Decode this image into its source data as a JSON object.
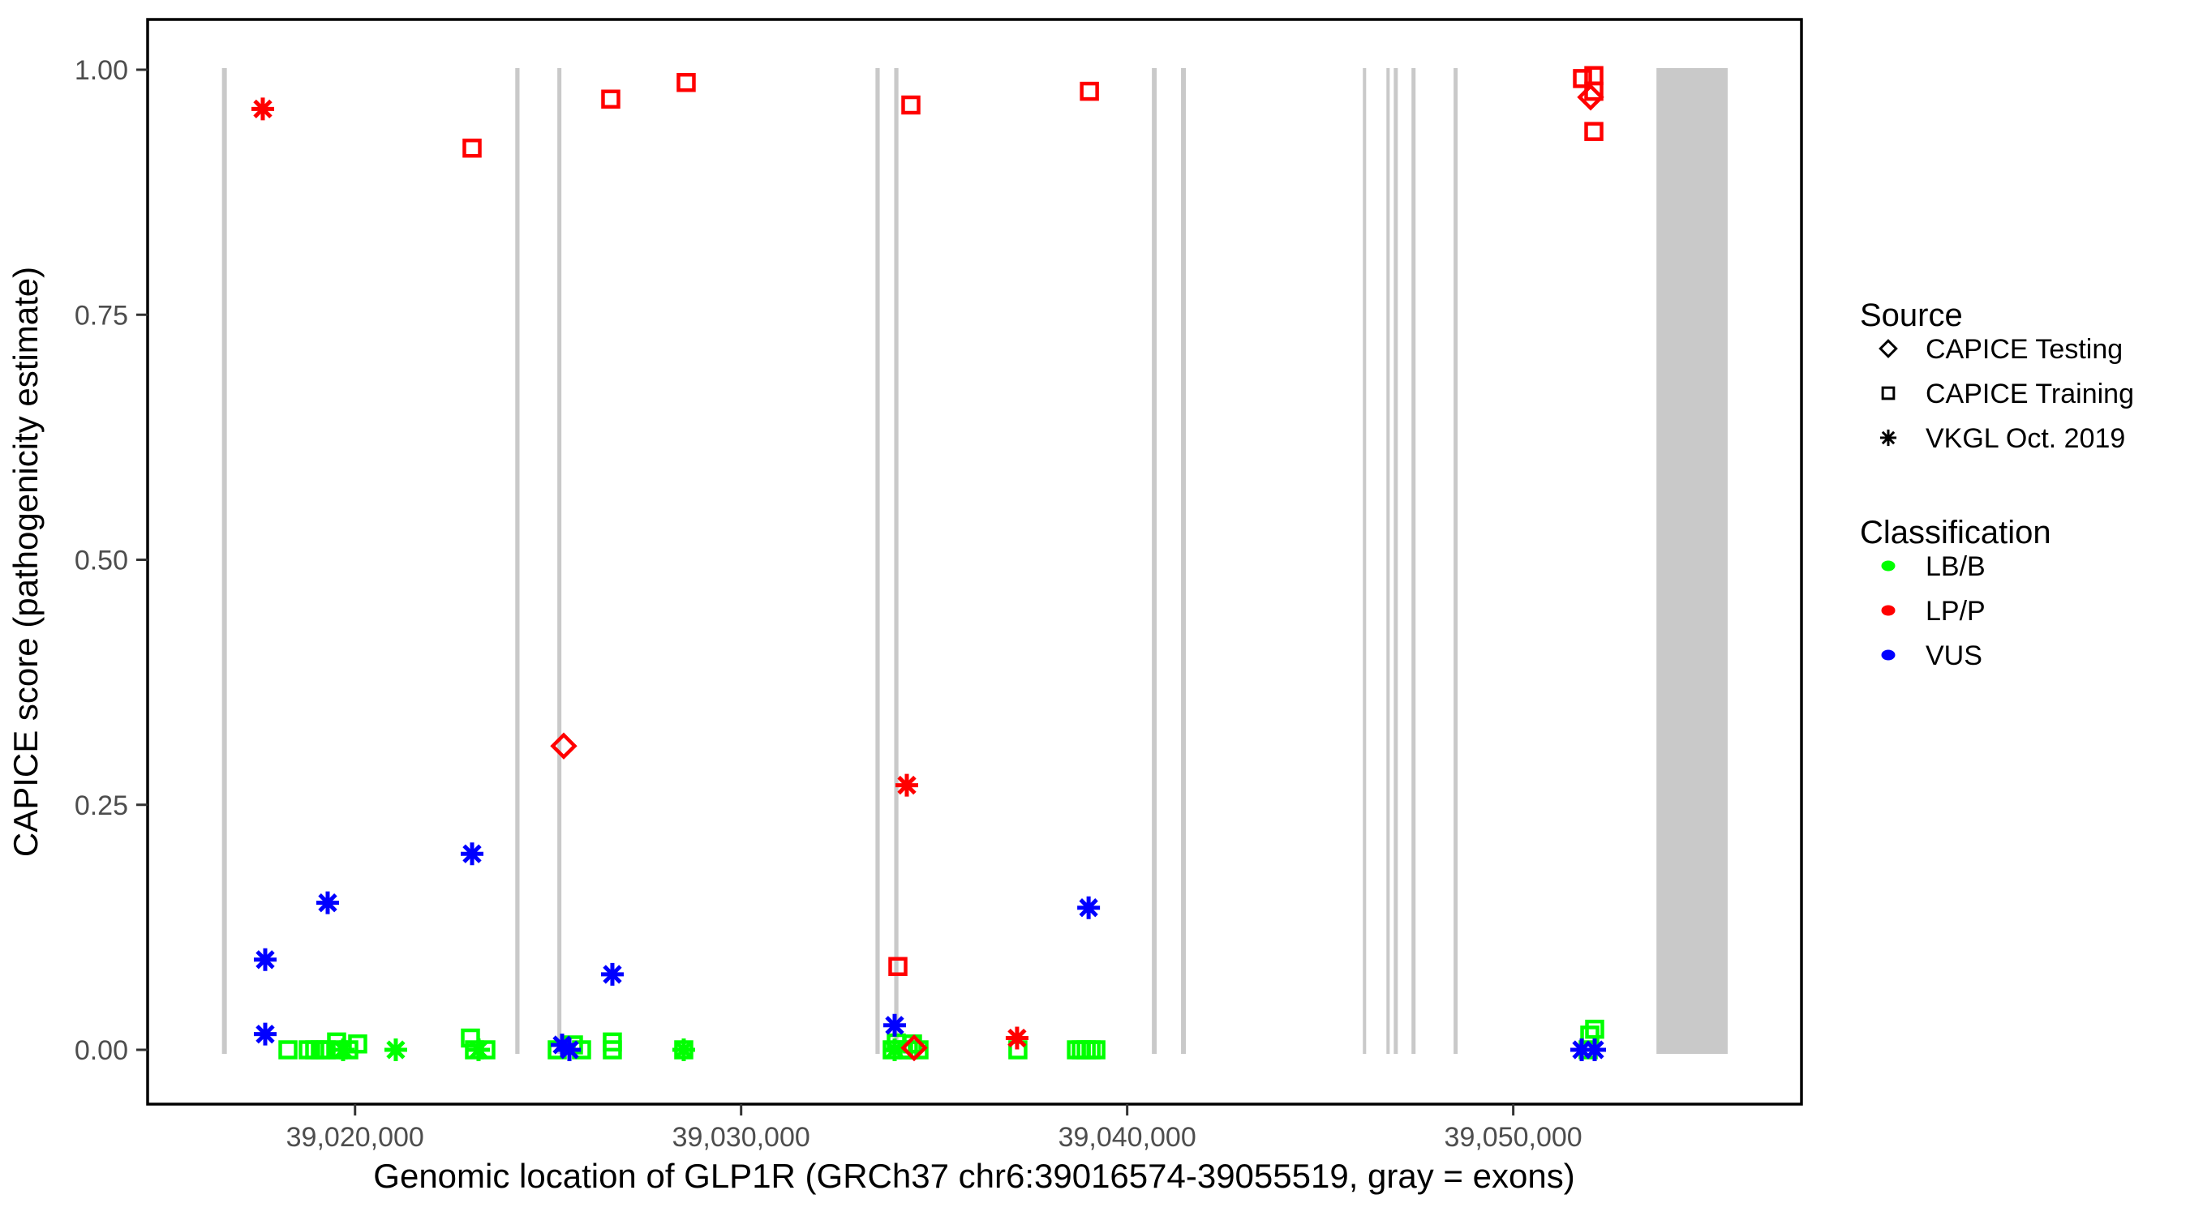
{
  "axes": {
    "x": {
      "label": "Genomic location of GLP1R (GRCh37 chr6:39016574-39055519, gray = exons)",
      "domain": [
        39014627,
        39057466
      ],
      "ticks": [
        {
          "pos": 39020000,
          "label": "39,020,000"
        },
        {
          "pos": 39030000,
          "label": "39,030,000"
        },
        {
          "pos": 39040000,
          "label": "39,040,000"
        },
        {
          "pos": 39050000,
          "label": "39,050,000"
        }
      ]
    },
    "y": {
      "label": "CAPICE score (pathogenicity estimate)",
      "domain": [
        -0.055,
        1.051
      ],
      "ticks": [
        {
          "v": 0.0,
          "label": "0.00"
        },
        {
          "v": 0.25,
          "label": "0.25"
        },
        {
          "v": 0.5,
          "label": "0.50"
        },
        {
          "v": 0.75,
          "label": "0.75"
        },
        {
          "v": 1.0,
          "label": "1.00"
        }
      ]
    }
  },
  "legend": {
    "source": {
      "title": "Source",
      "items": [
        {
          "label": "CAPICE Testing",
          "shape": "diamond"
        },
        {
          "label": "CAPICE Training",
          "shape": "square"
        },
        {
          "label": "VKGL Oct. 2019",
          "shape": "star"
        }
      ]
    },
    "classification": {
      "title": "Classification",
      "items": [
        {
          "label": "LB/B",
          "color": "#00ff00"
        },
        {
          "label": "LP/P",
          "color": "#ff0000"
        },
        {
          "label": "VUS",
          "color": "#0000ff"
        }
      ]
    }
  },
  "colors": {
    "exon": "#c9c9c9",
    "panel_border": "#000000",
    "tick": "#333333"
  },
  "chart_data": {
    "type": "scatter",
    "title": "",
    "xlabel": "Genomic location of GLP1R (GRCh37 chr6:39016574-39055519, gray = exons)",
    "ylabel": "CAPICE score (pathogenicity estimate)",
    "x_domain": [
      39014627,
      39057466
    ],
    "y_domain": [
      -0.055,
      1.051
    ],
    "grid": false,
    "legend_position": "right",
    "exons": [
      [
        39016553,
        39016679
      ],
      [
        39024150,
        39024260
      ],
      [
        39025240,
        39025345
      ],
      [
        39033480,
        39033590
      ],
      [
        39033965,
        39034075
      ],
      [
        39040640,
        39040765
      ],
      [
        39041395,
        39041520
      ],
      [
        39046105,
        39046190
      ],
      [
        39046715,
        39046800
      ],
      [
        39046905,
        39047010
      ],
      [
        39047365,
        39047470
      ],
      [
        39048455,
        39048560
      ],
      [
        39053710,
        39055555
      ]
    ],
    "points": [
      {
        "pos": 39018262,
        "score": 0.0,
        "source": "CAPICE Training",
        "cls": "LB/B"
      },
      {
        "pos": 39018787,
        "score": 0.0,
        "source": "CAPICE Training",
        "cls": "LB/B"
      },
      {
        "pos": 39018955,
        "score": 0.0,
        "source": "CAPICE Training",
        "cls": "LB/B"
      },
      {
        "pos": 39019102,
        "score": 0.0,
        "source": "CAPICE Training",
        "cls": "LB/B"
      },
      {
        "pos": 39019249,
        "score": 0.0,
        "source": "CAPICE Training",
        "cls": "LB/B"
      },
      {
        "pos": 39019522,
        "score": 0.008,
        "source": "CAPICE Training",
        "cls": "LB/B"
      },
      {
        "pos": 39019564,
        "score": 0.0,
        "source": "CAPICE Training",
        "cls": "LB/B"
      },
      {
        "pos": 39019837,
        "score": 0.0,
        "source": "CAPICE Training",
        "cls": "LB/B"
      },
      {
        "pos": 39020068,
        "score": 0.006,
        "source": "CAPICE Training",
        "cls": "LB/B"
      },
      {
        "pos": 39019690,
        "score": 0.0,
        "source": "VKGL Oct. 2019",
        "cls": "LB/B"
      },
      {
        "pos": 39021055,
        "score": 0.0,
        "source": "VKGL Oct. 2019",
        "cls": "LB/B"
      },
      {
        "pos": 39022989,
        "score": 0.012,
        "source": "CAPICE Training",
        "cls": "LB/B"
      },
      {
        "pos": 39023094,
        "score": 0.0,
        "source": "CAPICE Training",
        "cls": "LB/B"
      },
      {
        "pos": 39023388,
        "score": 0.0,
        "source": "CAPICE Training",
        "cls": "LB/B"
      },
      {
        "pos": 39023199,
        "score": 0.0,
        "source": "VKGL Oct. 2019",
        "cls": "LB/B"
      },
      {
        "pos": 39025237,
        "score": 0.0,
        "source": "CAPICE Training",
        "cls": "LB/B"
      },
      {
        "pos": 39025657,
        "score": 0.005,
        "source": "CAPICE Training",
        "cls": "LB/B"
      },
      {
        "pos": 39025867,
        "score": 0.0,
        "source": "CAPICE Training",
        "cls": "LB/B"
      },
      {
        "pos": 39026665,
        "score": 0.008,
        "source": "CAPICE Training",
        "cls": "LB/B"
      },
      {
        "pos": 39026665,
        "score": 0.0,
        "source": "CAPICE Training",
        "cls": "LB/B"
      },
      {
        "pos": 39028514,
        "score": 0.0,
        "source": "CAPICE Training",
        "cls": "LB/B"
      },
      {
        "pos": 39028514,
        "score": 0.0,
        "source": "VKGL Oct. 2019",
        "cls": "LB/B"
      },
      {
        "pos": 39033914,
        "score": 0.0,
        "source": "CAPICE Training",
        "cls": "LB/B"
      },
      {
        "pos": 39034019,
        "score": 0.007,
        "source": "CAPICE Training",
        "cls": "LB/B"
      },
      {
        "pos": 39034166,
        "score": 0.0,
        "source": "CAPICE Training",
        "cls": "LB/B"
      },
      {
        "pos": 39034334,
        "score": 0.0,
        "source": "CAPICE Training",
        "cls": "LB/B"
      },
      {
        "pos": 39034439,
        "score": 0.006,
        "source": "CAPICE Training",
        "cls": "LB/B"
      },
      {
        "pos": 39034607,
        "score": 0.0,
        "source": "CAPICE Training",
        "cls": "LB/B"
      },
      {
        "pos": 39033977,
        "score": 0.0,
        "source": "VKGL Oct. 2019",
        "cls": "LB/B"
      },
      {
        "pos": 39037169,
        "score": 0.0,
        "source": "CAPICE Training",
        "cls": "LB/B"
      },
      {
        "pos": 39038686,
        "score": 0.0,
        "source": "CAPICE Training",
        "cls": "LB/B"
      },
      {
        "pos": 39038812,
        "score": 0.0,
        "source": "CAPICE Training",
        "cls": "LB/B"
      },
      {
        "pos": 39038938,
        "score": 0.0,
        "source": "CAPICE Training",
        "cls": "LB/B"
      },
      {
        "pos": 39039064,
        "score": 0.0,
        "source": "CAPICE Training",
        "cls": "LB/B"
      },
      {
        "pos": 39039190,
        "score": 0.0,
        "source": "CAPICE Training",
        "cls": "LB/B"
      },
      {
        "pos": 39051941,
        "score": 0.0,
        "source": "CAPICE Training",
        "cls": "LB/B"
      },
      {
        "pos": 39051983,
        "score": 0.015,
        "source": "CAPICE Training",
        "cls": "LB/B"
      },
      {
        "pos": 39052109,
        "score": 0.021,
        "source": "CAPICE Training",
        "cls": "LB/B"
      },
      {
        "pos": 39017610,
        "score": 0.96,
        "source": "VKGL Oct. 2019",
        "cls": "LP/P"
      },
      {
        "pos": 39023031,
        "score": 0.92,
        "source": "CAPICE Training",
        "cls": "LP/P"
      },
      {
        "pos": 39025405,
        "score": 0.31,
        "source": "CAPICE Testing",
        "cls": "LP/P"
      },
      {
        "pos": 39026623,
        "score": 0.97,
        "source": "CAPICE Training",
        "cls": "LP/P"
      },
      {
        "pos": 39028577,
        "score": 0.987,
        "source": "CAPICE Training",
        "cls": "LP/P"
      },
      {
        "pos": 39034397,
        "score": 0.964,
        "source": "CAPICE Training",
        "cls": "LP/P"
      },
      {
        "pos": 39034292,
        "score": 0.27,
        "source": "VKGL Oct. 2019",
        "cls": "LP/P"
      },
      {
        "pos": 39034061,
        "score": 0.085,
        "source": "CAPICE Training",
        "cls": "LP/P"
      },
      {
        "pos": 39034481,
        "score": 0.002,
        "source": "CAPICE Testing",
        "cls": "LP/P"
      },
      {
        "pos": 39037148,
        "score": 0.012,
        "source": "VKGL Oct. 2019",
        "cls": "LP/P"
      },
      {
        "pos": 39039022,
        "score": 0.978,
        "source": "CAPICE Training",
        "cls": "LP/P"
      },
      {
        "pos": 39051794,
        "score": 0.991,
        "source": "CAPICE Training",
        "cls": "LP/P"
      },
      {
        "pos": 39052088,
        "score": 0.994,
        "source": "CAPICE Training",
        "cls": "LP/P"
      },
      {
        "pos": 39052088,
        "score": 0.978,
        "source": "CAPICE Training",
        "cls": "LP/P"
      },
      {
        "pos": 39052004,
        "score": 0.972,
        "source": "CAPICE Testing",
        "cls": "LP/P"
      },
      {
        "pos": 39052088,
        "score": 0.937,
        "source": "CAPICE Training",
        "cls": "LP/P"
      },
      {
        "pos": 39017673,
        "score": 0.092,
        "source": "VKGL Oct. 2019",
        "cls": "VUS"
      },
      {
        "pos": 39017673,
        "score": 0.016,
        "source": "VKGL Oct. 2019",
        "cls": "VUS"
      },
      {
        "pos": 39019291,
        "score": 0.15,
        "source": "VKGL Oct. 2019",
        "cls": "VUS"
      },
      {
        "pos": 39023031,
        "score": 0.2,
        "source": "VKGL Oct. 2019",
        "cls": "VUS"
      },
      {
        "pos": 39025363,
        "score": 0.005,
        "source": "VKGL Oct. 2019",
        "cls": "VUS"
      },
      {
        "pos": 39025552,
        "score": 0.0,
        "source": "VKGL Oct. 2019",
        "cls": "VUS"
      },
      {
        "pos": 39026665,
        "score": 0.077,
        "source": "VKGL Oct. 2019",
        "cls": "VUS"
      },
      {
        "pos": 39033977,
        "score": 0.025,
        "source": "VKGL Oct. 2019",
        "cls": "VUS"
      },
      {
        "pos": 39039001,
        "score": 0.145,
        "source": "VKGL Oct. 2019",
        "cls": "VUS"
      },
      {
        "pos": 39051773,
        "score": 0.0,
        "source": "VKGL Oct. 2019",
        "cls": "VUS"
      },
      {
        "pos": 39052109,
        "score": 0.0,
        "source": "VKGL Oct. 2019",
        "cls": "VUS"
      }
    ]
  }
}
